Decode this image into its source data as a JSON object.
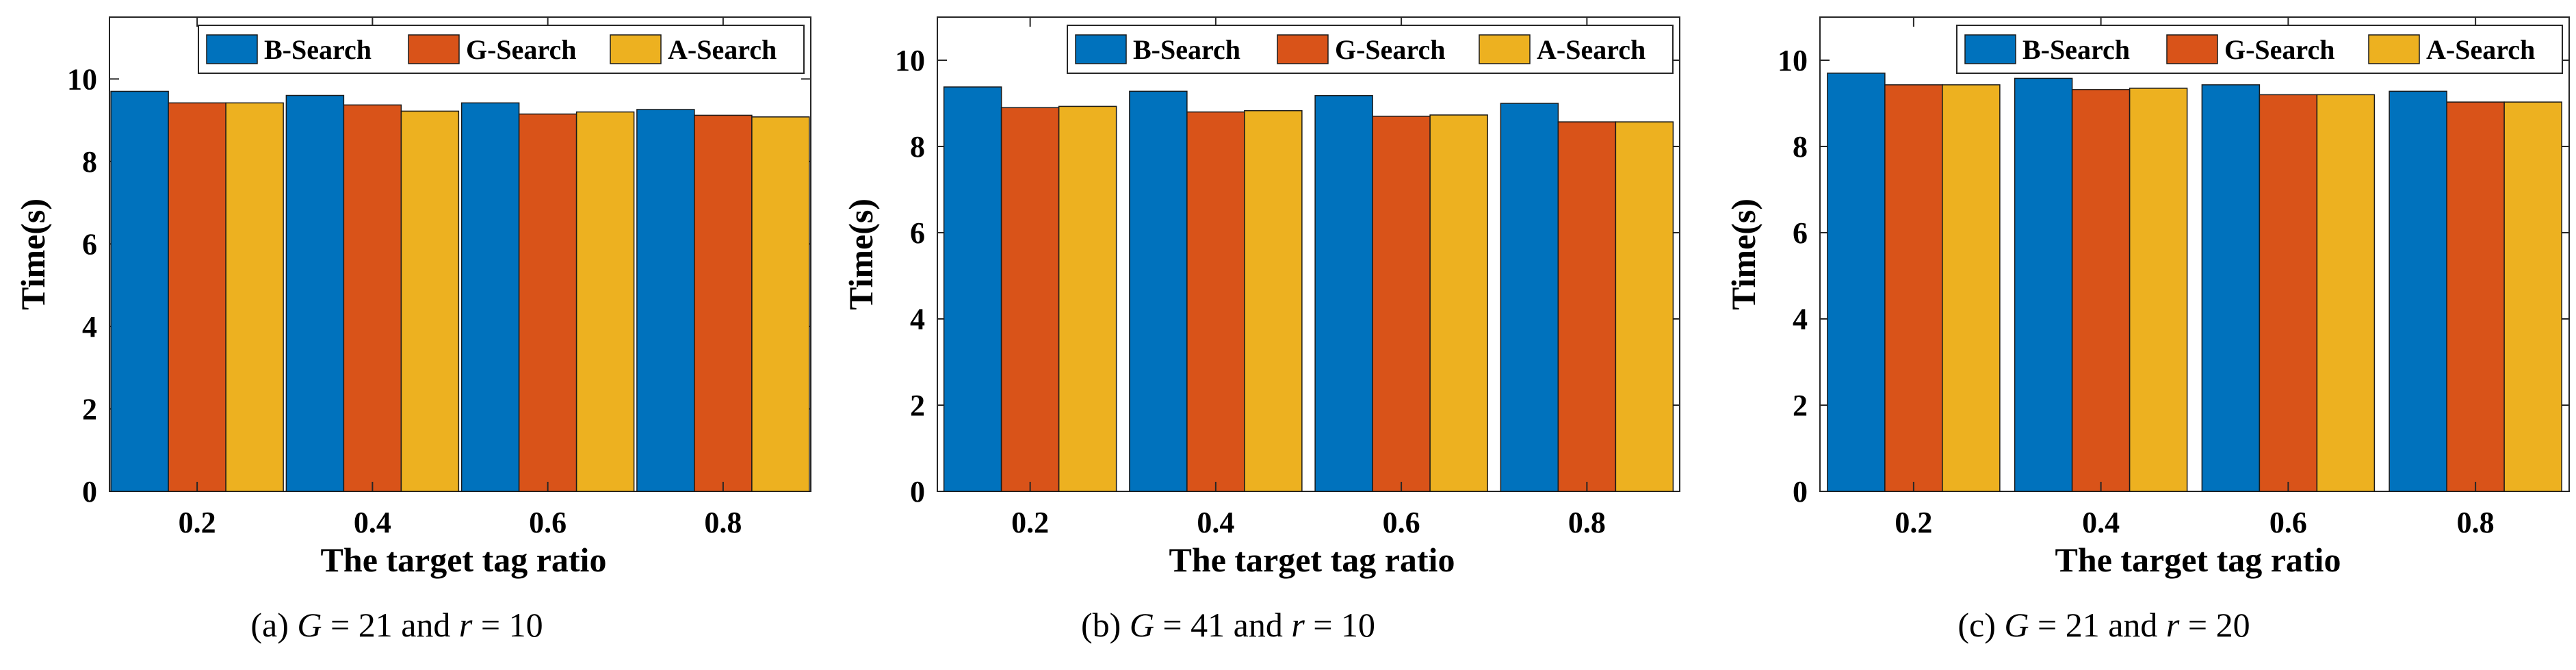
{
  "colors": {
    "B-Search": "#0072BD",
    "G-Search": "#D95319",
    "A-Search": "#EDB120"
  },
  "chart_data": [
    {
      "type": "bar",
      "categories": [
        "0.2",
        "0.4",
        "0.6",
        "0.8"
      ],
      "series": [
        {
          "name": "B-Search",
          "values": [
            9.7,
            9.6,
            9.42,
            9.26
          ]
        },
        {
          "name": "G-Search",
          "values": [
            9.42,
            9.37,
            9.15,
            9.12
          ]
        },
        {
          "name": "A-Search",
          "values": [
            9.42,
            9.22,
            9.2,
            9.08
          ]
        }
      ],
      "xlabel": "The target tag ratio",
      "ylabel": "Time(s)",
      "ylim": [
        0,
        11.5
      ],
      "yticks": [
        "0",
        "2",
        "4",
        "6",
        "8",
        "10"
      ],
      "legend": "top-right",
      "caption": {
        "label": "(a)",
        "var1": "G",
        "val1": "21",
        "conj": "and",
        "var2": "r",
        "val2": "10"
      }
    },
    {
      "type": "bar",
      "categories": [
        "0.2",
        "0.4",
        "0.6",
        "0.8"
      ],
      "series": [
        {
          "name": "B-Search",
          "values": [
            9.38,
            9.28,
            9.18,
            9.0
          ]
        },
        {
          "name": "G-Search",
          "values": [
            8.9,
            8.8,
            8.7,
            8.57
          ]
        },
        {
          "name": "A-Search",
          "values": [
            8.93,
            8.83,
            8.73,
            8.57
          ]
        }
      ],
      "xlabel": "The target tag ratio",
      "ylabel": "Time(s)",
      "ylim": [
        0,
        11
      ],
      "yticks": [
        "0",
        "2",
        "4",
        "6",
        "8",
        "10"
      ],
      "legend": "top-right",
      "caption": {
        "label": "(b)",
        "var1": "G",
        "val1": "41",
        "conj": "and",
        "var2": "r",
        "val2": "10"
      }
    },
    {
      "type": "bar",
      "categories": [
        "0.2",
        "0.4",
        "0.6",
        "0.8"
      ],
      "series": [
        {
          "name": "B-Search",
          "values": [
            9.7,
            9.58,
            9.43,
            9.28
          ]
        },
        {
          "name": "G-Search",
          "values": [
            9.43,
            9.32,
            9.2,
            9.03
          ]
        },
        {
          "name": "A-Search",
          "values": [
            9.43,
            9.35,
            9.2,
            9.03
          ]
        }
      ],
      "xlabel": "The target tag ratio",
      "ylabel": "Time(s)",
      "ylim": [
        0,
        11
      ],
      "yticks": [
        "0",
        "2",
        "4",
        "6",
        "8",
        "10"
      ],
      "legend": "top-right",
      "caption": {
        "label": "(c)",
        "var1": "G",
        "val1": "21",
        "conj": "and",
        "var2": "r",
        "val2": "20"
      }
    }
  ]
}
